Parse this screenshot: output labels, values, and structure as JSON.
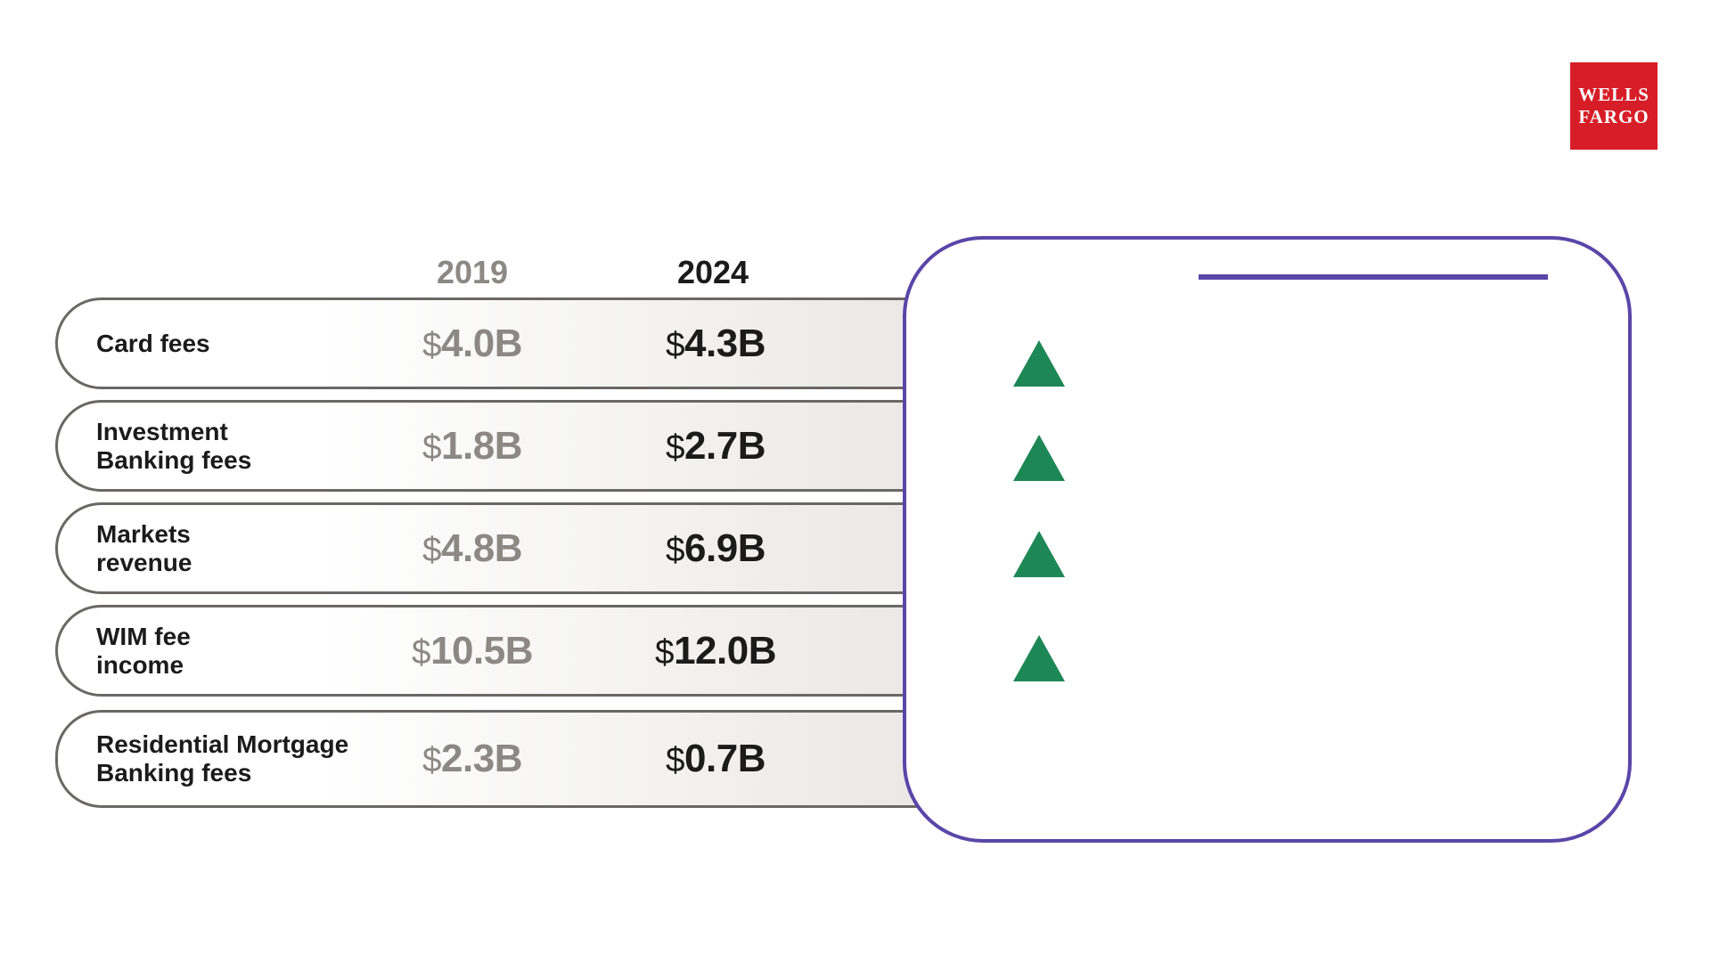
{
  "logo": {
    "line1": "WELLS",
    "line2": "FARGO",
    "background": "#d71e28"
  },
  "table": {
    "currency": "$",
    "headers": [
      {
        "label": "2019",
        "color": "#8c8884"
      },
      {
        "label": "2024",
        "color": "#1b1b1b"
      }
    ],
    "rows": [
      {
        "label": "Card fees",
        "y2019": "4.0B",
        "y2024": "4.3B"
      },
      {
        "label": "Investment\nBanking fees",
        "y2019": "1.8B",
        "y2024": "2.7B"
      },
      {
        "label": "Markets\nrevenue",
        "y2019": "4.8B",
        "y2024": "6.9B"
      },
      {
        "label": "WIM fee\nincome",
        "y2019": "10.5B",
        "y2024": "12.0B"
      },
      {
        "label": "Residential Mortgage\nBanking fees",
        "y2019": "2.3B",
        "y2024": "0.7B"
      }
    ]
  },
  "panel": {
    "indicators": [
      "up",
      "up",
      "up",
      "up"
    ],
    "indicator_color": "#1e8756",
    "accent_color": "#5a46a8"
  },
  "chart_data": {
    "type": "table",
    "title": "",
    "categories": [
      "Card fees",
      "Investment Banking fees",
      "Markets revenue",
      "WIM fee income",
      "Residential Mortgage Banking fees"
    ],
    "series": [
      {
        "name": "2019",
        "values": [
          4.0,
          1.8,
          4.8,
          10.5,
          2.3
        ],
        "unit": "$B"
      },
      {
        "name": "2024",
        "values": [
          4.3,
          2.7,
          6.9,
          12.0,
          0.7
        ],
        "unit": "$B"
      }
    ],
    "annotations": "Four green up-arrows beside the first four rows indicating growth from 2019 to 2024"
  }
}
